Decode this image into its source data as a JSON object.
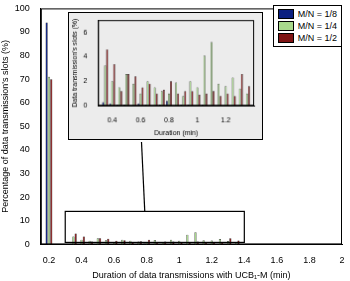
{
  "chart_data": [
    {
      "type": "bar",
      "x_label": "Duration of data transmissions with UCB₁-M (min)",
      "y_label": "Percentage of data transmission's slots (%)",
      "x": [
        0.2,
        0.35,
        0.4,
        0.45,
        0.5,
        0.55,
        0.6,
        0.65,
        0.7,
        0.75,
        0.8,
        0.85,
        0.9,
        0.95,
        1.0,
        1.05,
        1.1,
        1.15,
        1.2,
        1.25,
        1.3,
        1.35
      ],
      "series": [
        {
          "name": "M/N = 1/8",
          "color": "#0b1f80",
          "values": [
            94,
            0.3,
            0.2,
            0.1,
            0.1,
            0,
            0.2,
            0.1,
            0,
            0.1,
            0.4,
            0,
            0.1,
            0.1,
            0,
            0.1,
            0,
            0,
            0,
            0,
            0,
            0
          ]
        },
        {
          "name": "M/N = 1/4",
          "color": "#a8d98c",
          "values": [
            71,
            3.3,
            2.0,
            1.5,
            2.6,
            1.8,
            1.0,
            2.0,
            1.5,
            1.2,
            1.0,
            1.9,
            0.8,
            2.0,
            1.5,
            4.1,
            5.2,
            1.8,
            1.6,
            2.3,
            1.4,
            1.0
          ]
        },
        {
          "name": "M/N = 1/2",
          "color": "#7f1414",
          "values": [
            70,
            4.6,
            3.4,
            1.2,
            2.6,
            2.4,
            1.5,
            1.8,
            1.0,
            1.3,
            2.0,
            1.0,
            1.2,
            1.2,
            0.9,
            1.0,
            1.2,
            0.8,
            1.0,
            0.8,
            2.6,
            1.6
          ]
        }
      ],
      "xlim": [
        0.15,
        2
      ],
      "ylim": [
        0,
        100
      ],
      "xticks": [
        0.2,
        0.4,
        0.6,
        0.8,
        1,
        1.2,
        1.4,
        1.6,
        1.8,
        2
      ],
      "yticks": [
        0,
        10,
        20,
        30,
        40,
        50,
        60,
        70,
        80,
        90,
        100
      ],
      "grid": false,
      "legend": "upper right"
    },
    {
      "type": "bar",
      "x_label": "Duration (min)",
      "y_label": "Data transmission's slots (%)",
      "x": [
        0.35,
        0.4,
        0.45,
        0.5,
        0.55,
        0.6,
        0.65,
        0.7,
        0.75,
        0.8,
        0.85,
        0.9,
        0.95,
        1.0,
        1.05,
        1.1,
        1.15,
        1.2,
        1.25,
        1.3,
        1.35
      ],
      "series": [
        {
          "color": "#0b1f80",
          "values": [
            0.3,
            0.2,
            0.1,
            0.1,
            0,
            0.2,
            0.1,
            0,
            0.1,
            0.4,
            0,
            0.1,
            0.1,
            0,
            0.1,
            0,
            0,
            0,
            0,
            0,
            0
          ]
        },
        {
          "color": "#a8d98c",
          "values": [
            3.3,
            2.0,
            1.5,
            2.6,
            1.8,
            1.0,
            2.0,
            1.5,
            1.2,
            1.0,
            1.9,
            0.8,
            2.0,
            1.5,
            4.1,
            5.2,
            1.8,
            1.6,
            2.3,
            1.4,
            1.0
          ]
        },
        {
          "color": "#7f1414",
          "values": [
            4.6,
            3.4,
            1.2,
            2.6,
            2.4,
            1.5,
            1.8,
            1.0,
            1.3,
            2.0,
            1.0,
            1.2,
            1.2,
            0.9,
            1.0,
            1.2,
            0.8,
            1.0,
            0.8,
            2.6,
            1.6
          ]
        }
      ],
      "xlim": [
        0.3,
        1.4
      ],
      "ylim": [
        0,
        7
      ],
      "xticks": [
        0.4,
        0.6,
        0.8,
        1,
        1.2
      ],
      "yticks": [
        0,
        2,
        4,
        6
      ],
      "grid": false
    }
  ]
}
